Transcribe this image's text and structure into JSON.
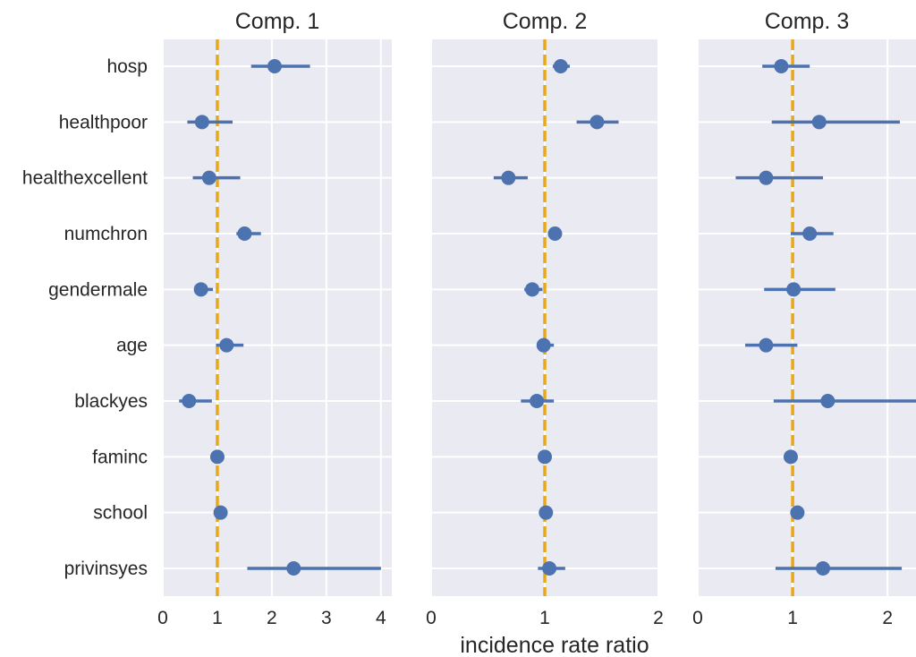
{
  "chart_data": {
    "type": "forest",
    "xlabel": "incidence rate ratio",
    "reference_line": {
      "x": 1,
      "color": "#e8a817",
      "style": "dashed"
    },
    "colors": {
      "background": "#eaeaf2",
      "grid": "#ffffff",
      "point": "#4c72b0"
    },
    "categories": [
      "hosp",
      "healthpoor",
      "healthexcellent",
      "numchron",
      "gendermale",
      "age",
      "blackyes",
      "faminc",
      "school",
      "privinsyes"
    ],
    "panels": [
      {
        "title": "Comp. 1",
        "xlim": [
          0,
          4.2
        ],
        "xticks": [
          0,
          1,
          2,
          3,
          4
        ],
        "estimates": [
          2.05,
          0.72,
          0.85,
          1.5,
          0.7,
          1.17,
          0.48,
          1.0,
          1.06,
          2.4
        ],
        "ci_low": [
          1.62,
          0.45,
          0.55,
          1.35,
          0.6,
          0.98,
          0.3,
          0.97,
          1.0,
          1.55
        ],
        "ci_high": [
          2.7,
          1.28,
          1.42,
          1.8,
          0.92,
          1.48,
          0.9,
          1.04,
          1.12,
          4.0
        ]
      },
      {
        "title": "Comp. 2",
        "xlim": [
          0,
          2.0
        ],
        "xticks": [
          0,
          1,
          2
        ],
        "estimates": [
          1.14,
          1.46,
          0.68,
          1.09,
          0.89,
          0.99,
          0.93,
          1.0,
          1.01,
          1.04
        ],
        "ci_low": [
          1.07,
          1.28,
          0.55,
          1.06,
          0.82,
          0.93,
          0.79,
          0.98,
          0.99,
          0.94
        ],
        "ci_high": [
          1.22,
          1.65,
          0.85,
          1.12,
          0.98,
          1.08,
          1.08,
          1.03,
          1.04,
          1.18
        ]
      },
      {
        "title": "Comp. 3",
        "xlim": [
          0,
          2.3
        ],
        "xticks": [
          0,
          1,
          2
        ],
        "estimates": [
          0.88,
          1.28,
          0.72,
          1.18,
          1.01,
          0.72,
          1.37,
          0.98,
          1.05,
          1.32
        ],
        "ci_low": [
          0.68,
          0.78,
          0.4,
          0.98,
          0.7,
          0.5,
          0.8,
          0.92,
          0.98,
          0.82
        ],
        "ci_high": [
          1.18,
          2.13,
          1.32,
          1.43,
          1.45,
          1.05,
          2.3,
          1.05,
          1.12,
          2.15
        ]
      }
    ]
  }
}
